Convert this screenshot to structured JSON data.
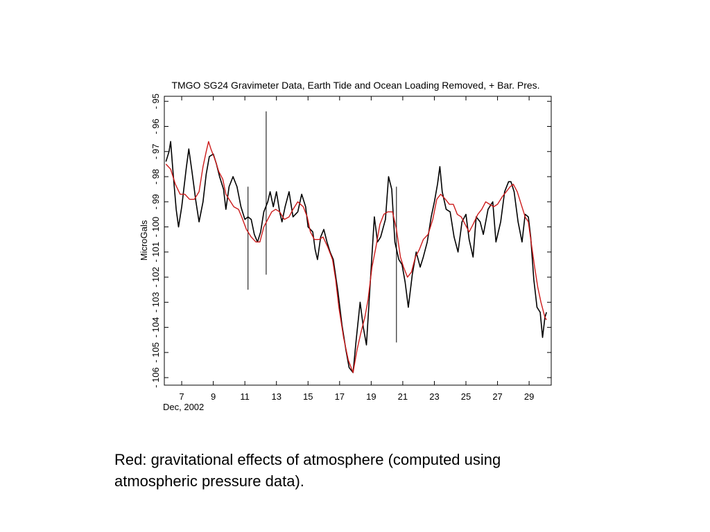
{
  "chart_data": {
    "type": "line",
    "title": "TMGO SG24 Gravimeter Data, Earth Tide and Ocean Loading Removed, + Bar. Pres.",
    "xlabel": "Dec, 2002",
    "ylabel": "MicroGals",
    "xlim": [
      5.9,
      30.4
    ],
    "ylim": [
      -106.3,
      -94.8
    ],
    "xticks": [
      7,
      9,
      11,
      13,
      15,
      17,
      19,
      21,
      23,
      25,
      27,
      29
    ],
    "yticks": [
      -95,
      -96,
      -97,
      -98,
      -99,
      -100,
      -101,
      -102,
      -103,
      -104,
      -105,
      -106
    ],
    "grid": false,
    "series": [
      {
        "color": "#000000",
        "points": [
          [
            6.0,
            -97.4
          ],
          [
            6.2,
            -97.0
          ],
          [
            6.3,
            -96.6
          ],
          [
            6.45,
            -97.8
          ],
          [
            6.65,
            -99.3
          ],
          [
            6.8,
            -100.0
          ],
          [
            7.0,
            -99.2
          ],
          [
            7.3,
            -97.6
          ],
          [
            7.45,
            -96.9
          ],
          [
            7.65,
            -97.8
          ],
          [
            7.9,
            -99.0
          ],
          [
            8.1,
            -99.8
          ],
          [
            8.35,
            -99.0
          ],
          [
            8.55,
            -97.9
          ],
          [
            8.75,
            -97.2
          ],
          [
            9.0,
            -97.1
          ],
          [
            9.2,
            -97.5
          ],
          [
            9.4,
            -98.0
          ],
          [
            9.65,
            -98.5
          ],
          [
            9.8,
            -99.3
          ],
          [
            10.0,
            -98.4
          ],
          [
            10.25,
            -98.0
          ],
          [
            10.5,
            -98.4
          ],
          [
            10.75,
            -99.2
          ],
          [
            11.0,
            -99.7
          ],
          [
            11.2,
            -99.6
          ],
          [
            11.4,
            -99.7
          ],
          [
            11.6,
            -100.3
          ],
          [
            11.8,
            -100.6
          ],
          [
            12.0,
            -100.2
          ],
          [
            12.2,
            -99.4
          ],
          [
            12.45,
            -99.0
          ],
          [
            12.6,
            -98.6
          ],
          [
            12.8,
            -99.2
          ],
          [
            13.0,
            -98.6
          ],
          [
            13.2,
            -99.4
          ],
          [
            13.35,
            -99.8
          ],
          [
            13.55,
            -99.2
          ],
          [
            13.8,
            -98.6
          ],
          [
            14.05,
            -99.6
          ],
          [
            14.35,
            -99.4
          ],
          [
            14.6,
            -98.7
          ],
          [
            14.85,
            -99.2
          ],
          [
            15.0,
            -100.0
          ],
          [
            15.3,
            -100.2
          ],
          [
            15.45,
            -100.9
          ],
          [
            15.6,
            -101.3
          ],
          [
            15.8,
            -100.4
          ],
          [
            16.0,
            -100.1
          ],
          [
            16.2,
            -100.6
          ],
          [
            16.4,
            -101.0
          ],
          [
            16.6,
            -101.3
          ],
          [
            16.9,
            -102.6
          ],
          [
            17.15,
            -103.9
          ],
          [
            17.4,
            -104.9
          ],
          [
            17.6,
            -105.6
          ],
          [
            17.85,
            -105.8
          ],
          [
            18.05,
            -104.5
          ],
          [
            18.3,
            -103.0
          ],
          [
            18.5,
            -104.0
          ],
          [
            18.7,
            -104.7
          ],
          [
            19.0,
            -101.6
          ],
          [
            19.2,
            -99.6
          ],
          [
            19.4,
            -100.6
          ],
          [
            19.6,
            -100.4
          ],
          [
            19.9,
            -99.7
          ],
          [
            20.1,
            -98.0
          ],
          [
            20.3,
            -98.5
          ],
          [
            20.5,
            -100.6
          ],
          [
            20.75,
            -101.3
          ],
          [
            20.95,
            -101.5
          ],
          [
            21.15,
            -102.2
          ],
          [
            21.35,
            -103.2
          ],
          [
            21.6,
            -101.9
          ],
          [
            21.85,
            -101.0
          ],
          [
            22.1,
            -101.6
          ],
          [
            22.3,
            -101.2
          ],
          [
            22.55,
            -100.6
          ],
          [
            22.8,
            -99.6
          ],
          [
            23.0,
            -99.0
          ],
          [
            23.2,
            -98.3
          ],
          [
            23.35,
            -97.6
          ],
          [
            23.5,
            -98.6
          ],
          [
            23.75,
            -99.3
          ],
          [
            24.0,
            -99.4
          ],
          [
            24.25,
            -100.4
          ],
          [
            24.5,
            -101.0
          ],
          [
            24.75,
            -99.8
          ],
          [
            25.0,
            -99.5
          ],
          [
            25.2,
            -100.5
          ],
          [
            25.45,
            -101.2
          ],
          [
            25.65,
            -99.6
          ],
          [
            25.9,
            -99.8
          ],
          [
            26.1,
            -100.3
          ],
          [
            26.4,
            -99.3
          ],
          [
            26.7,
            -99.0
          ],
          [
            26.9,
            -100.6
          ],
          [
            27.2,
            -99.8
          ],
          [
            27.45,
            -98.6
          ],
          [
            27.7,
            -98.2
          ],
          [
            27.85,
            -98.2
          ],
          [
            28.05,
            -98.6
          ],
          [
            28.3,
            -99.8
          ],
          [
            28.55,
            -100.6
          ],
          [
            28.75,
            -99.5
          ],
          [
            28.95,
            -99.6
          ],
          [
            29.1,
            -100.4
          ],
          [
            29.3,
            -102.1
          ],
          [
            29.5,
            -103.2
          ],
          [
            29.7,
            -103.4
          ],
          [
            29.85,
            -104.4
          ],
          [
            30.0,
            -103.6
          ],
          [
            30.1,
            -103.4
          ]
        ],
        "spikes": [
          [
            11.2,
            -98.4,
            -102.5
          ],
          [
            12.35,
            -95.4,
            -101.9
          ],
          [
            20.6,
            -98.4,
            -104.6
          ]
        ]
      },
      {
        "color": "#cc1a1a",
        "points": [
          [
            6.0,
            -97.5
          ],
          [
            6.3,
            -97.7
          ],
          [
            6.6,
            -98.3
          ],
          [
            6.9,
            -98.7
          ],
          [
            7.2,
            -98.7
          ],
          [
            7.5,
            -98.9
          ],
          [
            7.8,
            -98.9
          ],
          [
            8.1,
            -98.6
          ],
          [
            8.35,
            -97.6
          ],
          [
            8.55,
            -97.0
          ],
          [
            8.7,
            -96.6
          ],
          [
            8.85,
            -96.9
          ],
          [
            9.1,
            -97.3
          ],
          [
            9.35,
            -97.8
          ],
          [
            9.6,
            -98.1
          ],
          [
            9.8,
            -98.7
          ],
          [
            10.0,
            -98.9
          ],
          [
            10.3,
            -99.2
          ],
          [
            10.6,
            -99.3
          ],
          [
            10.8,
            -99.6
          ],
          [
            11.1,
            -100.1
          ],
          [
            11.4,
            -100.4
          ],
          [
            11.7,
            -100.6
          ],
          [
            11.95,
            -100.6
          ],
          [
            12.2,
            -100.0
          ],
          [
            12.45,
            -99.7
          ],
          [
            12.7,
            -99.4
          ],
          [
            12.95,
            -99.3
          ],
          [
            13.2,
            -99.4
          ],
          [
            13.5,
            -99.7
          ],
          [
            13.8,
            -99.6
          ],
          [
            14.05,
            -99.3
          ],
          [
            14.35,
            -99.0
          ],
          [
            14.7,
            -99.2
          ],
          [
            14.95,
            -99.6
          ],
          [
            15.15,
            -100.2
          ],
          [
            15.4,
            -100.5
          ],
          [
            15.7,
            -100.5
          ],
          [
            15.95,
            -100.4
          ],
          [
            16.25,
            -100.8
          ],
          [
            16.55,
            -101.3
          ],
          [
            16.75,
            -102.1
          ],
          [
            16.95,
            -103.2
          ],
          [
            17.25,
            -104.4
          ],
          [
            17.55,
            -105.3
          ],
          [
            17.85,
            -105.8
          ],
          [
            18.1,
            -104.9
          ],
          [
            18.35,
            -104.2
          ],
          [
            18.6,
            -103.6
          ],
          [
            18.8,
            -102.9
          ],
          [
            19.05,
            -101.6
          ],
          [
            19.3,
            -100.8
          ],
          [
            19.55,
            -99.9
          ],
          [
            19.8,
            -99.5
          ],
          [
            20.05,
            -99.4
          ],
          [
            20.35,
            -99.4
          ],
          [
            20.6,
            -100.1
          ],
          [
            20.85,
            -101.2
          ],
          [
            21.05,
            -101.6
          ],
          [
            21.3,
            -102.0
          ],
          [
            21.55,
            -101.8
          ],
          [
            21.8,
            -101.2
          ],
          [
            22.05,
            -100.9
          ],
          [
            22.3,
            -100.5
          ],
          [
            22.6,
            -100.3
          ],
          [
            22.9,
            -99.7
          ],
          [
            23.15,
            -98.9
          ],
          [
            23.4,
            -98.7
          ],
          [
            23.7,
            -98.9
          ],
          [
            23.95,
            -99.1
          ],
          [
            24.2,
            -99.1
          ],
          [
            24.45,
            -99.5
          ],
          [
            24.7,
            -99.6
          ],
          [
            24.95,
            -99.9
          ],
          [
            25.2,
            -100.2
          ],
          [
            25.45,
            -99.9
          ],
          [
            25.75,
            -99.5
          ],
          [
            26.0,
            -99.3
          ],
          [
            26.25,
            -99.0
          ],
          [
            26.5,
            -99.1
          ],
          [
            26.75,
            -99.2
          ],
          [
            27.0,
            -99.1
          ],
          [
            27.3,
            -98.8
          ],
          [
            27.55,
            -98.6
          ],
          [
            27.8,
            -98.4
          ],
          [
            28.0,
            -98.3
          ],
          [
            28.25,
            -98.6
          ],
          [
            28.5,
            -99.1
          ],
          [
            28.75,
            -99.6
          ],
          [
            28.95,
            -99.8
          ],
          [
            29.15,
            -100.7
          ],
          [
            29.35,
            -101.6
          ],
          [
            29.55,
            -102.4
          ],
          [
            29.75,
            -103.0
          ],
          [
            30.0,
            -103.6
          ],
          [
            30.1,
            -103.7
          ]
        ],
        "spikes": []
      }
    ]
  },
  "caption": {
    "line1": "Red: gravitational effects of atmosphere (computed using",
    "line2": "atmospheric pressure data)."
  }
}
